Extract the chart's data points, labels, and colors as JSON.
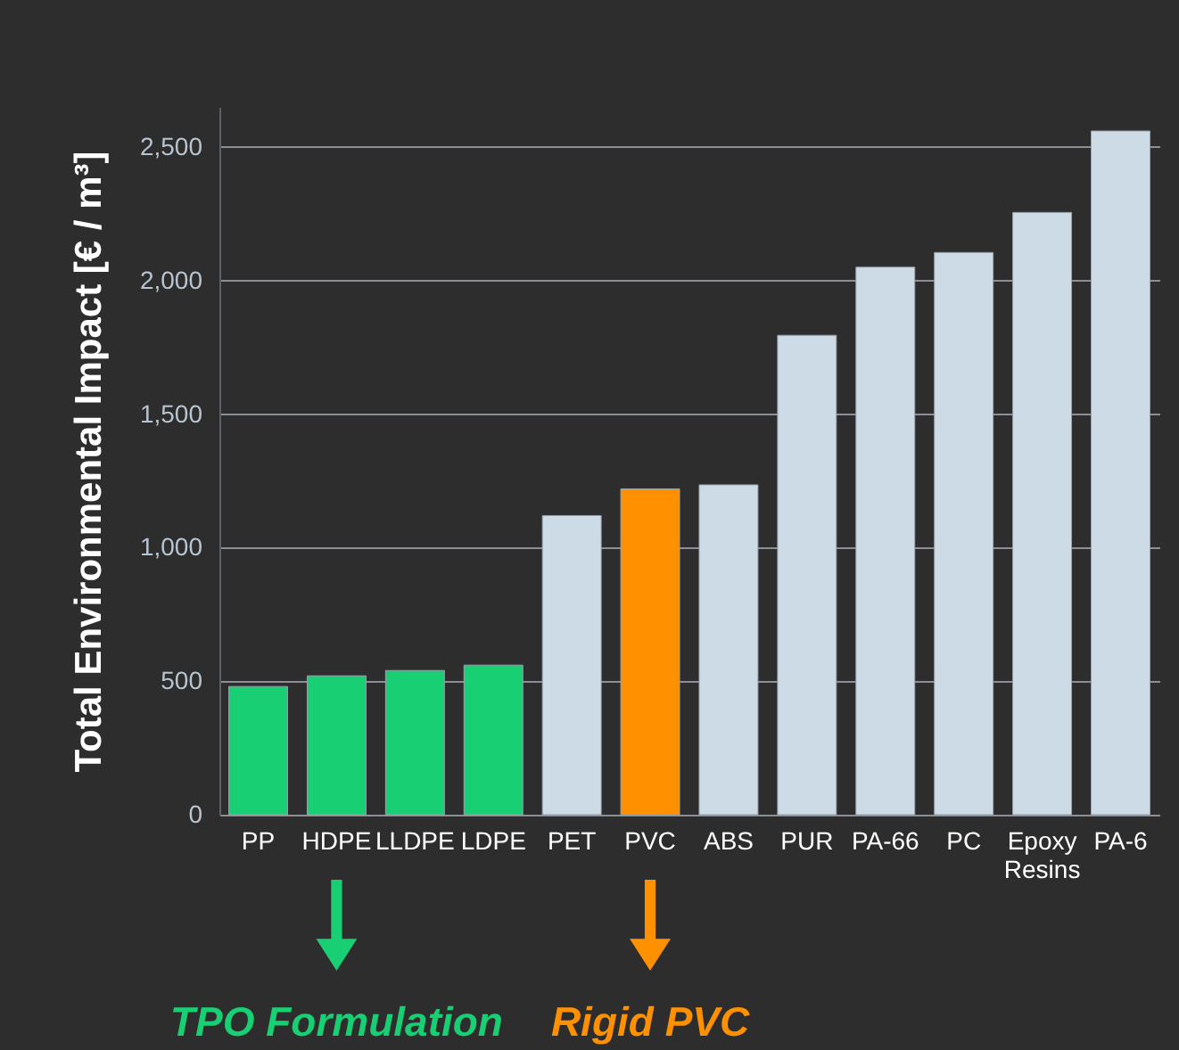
{
  "chart_data": {
    "type": "bar",
    "ylabel": "Total Environmental Impact [€ / m³]",
    "categories": [
      "PP",
      "HDPE",
      "LLDPE",
      "LDPE",
      "PET",
      "PVC",
      "ABS",
      "PUR",
      "PA-66",
      "PC",
      "Epoxy Resins",
      "PA-6"
    ],
    "values": [
      480,
      520,
      540,
      560,
      1120,
      1220,
      1235,
      1795,
      2050,
      2105,
      2255,
      2560
    ],
    "colors": [
      "#19cf73",
      "#19cf73",
      "#19cf73",
      "#19cf73",
      "#cddbe6",
      "#ff9100",
      "#cddbe6",
      "#cddbe6",
      "#cddbe6",
      "#cddbe6",
      "#cddbe6",
      "#cddbe6"
    ],
    "ylim": [
      0,
      2650
    ],
    "yticks": [
      0,
      {
        "value": 500,
        "label": "500"
      },
      {
        "value": 1000,
        "label": "1,000"
      },
      {
        "value": 1500,
        "label": "1,500"
      },
      {
        "value": 2000,
        "label": "2,000"
      },
      {
        "value": 2500,
        "label": "2,500"
      }
    ],
    "grid": "y",
    "annotations": [
      "TPO Formulation",
      "Rigid PVC"
    ]
  }
}
